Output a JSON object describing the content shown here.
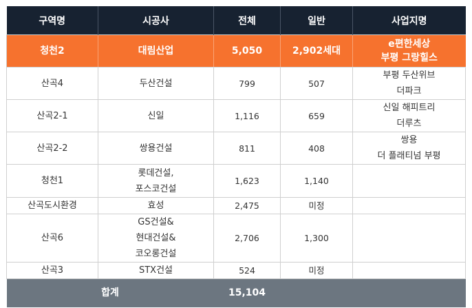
{
  "headers": [
    "구역명",
    "시공사",
    "전체",
    "일반",
    "사업지명"
  ],
  "highlight_row": {
    "zone": "청천2",
    "builder": "대림산업",
    "total": "5,050",
    "general": "2,902세대",
    "project": [
      "e편한세상",
      "부평 그랑힐스"
    ]
  },
  "rows": [
    {
      "zone": "산곡4",
      "builder": [
        "두산건설"
      ],
      "total": "799",
      "general": "507",
      "project": [
        "부평 두산위브",
        "더파크"
      ]
    },
    {
      "zone": "산곡2-1",
      "builder": [
        "신일"
      ],
      "total": "1,116",
      "general": "659",
      "project": [
        "신일 해피트리",
        "더루츠"
      ]
    },
    {
      "zone": "산곡2-2",
      "builder": [
        "쌍용건설"
      ],
      "total": "811",
      "general": "408",
      "project": [
        "쌍용",
        "더 플래티넘 부평"
      ]
    },
    {
      "zone": "청천1",
      "builder": [
        "롯데건설,",
        "포스코건설"
      ],
      "total": "1,623",
      "general": "1,140",
      "project": []
    },
    {
      "zone": "산곡도시환경",
      "builder": [
        "효성"
      ],
      "total": "2,475",
      "general": "미정",
      "project": []
    },
    {
      "zone": "산곡6",
      "builder": [
        "GS건설&",
        "현대건설&",
        "코오롱건설"
      ],
      "total": "2,706",
      "general": "1,300",
      "project": []
    },
    {
      "zone": "산곡3",
      "builder": [
        "STX건설"
      ],
      "total": "524",
      "general": "미정",
      "project": []
    }
  ],
  "total_row": {
    "label": "합계",
    "value": "15,104"
  },
  "colors": {
    "header_bg": "#172231",
    "highlight_bg": "#f6722e",
    "total_bg": "#6c7680"
  }
}
